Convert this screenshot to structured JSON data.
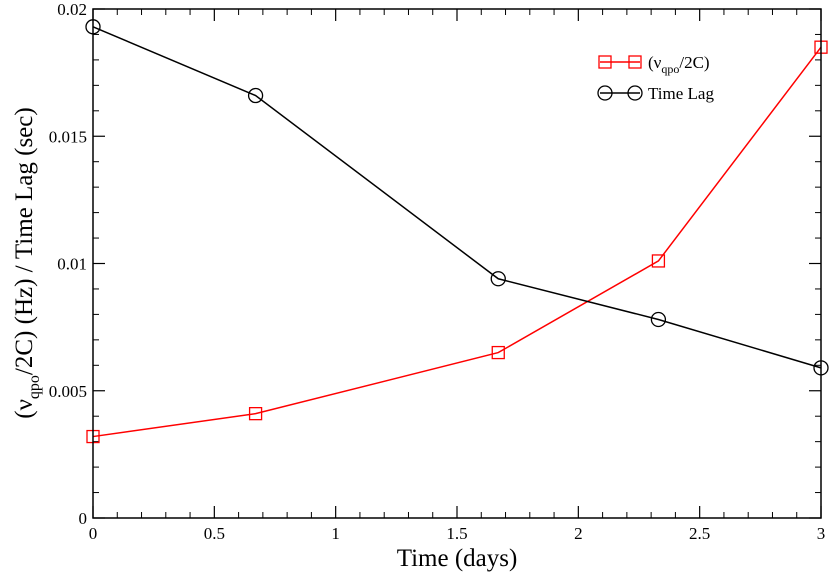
{
  "chart_data": {
    "type": "line",
    "title": "",
    "xlabel": "Time (days)",
    "ylabel": "(ν_qpo/2C) (Hz) / Time Lag (sec)",
    "ylabel_parts": {
      "prefix": "(ν",
      "subscript": "qpo",
      "suffix": "/2C) (Hz) / Time Lag (sec)"
    },
    "xlim": [
      0,
      3
    ],
    "ylim": [
      0,
      0.02
    ],
    "x_ticks": [
      0,
      0.5,
      1,
      1.5,
      2,
      2.5,
      3
    ],
    "x_tick_labels": [
      "0",
      "0.5",
      "1",
      "1.5",
      "2",
      "2.5",
      "3"
    ],
    "y_ticks": [
      0,
      0.005,
      0.01,
      0.015,
      0.02
    ],
    "y_tick_labels": [
      "0",
      "0.005",
      "0.01",
      "0.015",
      "0.02"
    ],
    "x_minor_step": 0.1,
    "y_minor_step": 0.001,
    "grid": false,
    "legend_position": "top-right",
    "series": [
      {
        "name": "(ν_qpo/2C)",
        "legend_parts": {
          "prefix": "(ν",
          "subscript": "qpo",
          "suffix": "/2C)"
        },
        "color": "#ff0000",
        "marker": "square",
        "x": [
          0,
          0.67,
          1.67,
          2.33,
          3.0
        ],
        "values": [
          0.0032,
          0.0041,
          0.0065,
          0.0101,
          0.0185
        ]
      },
      {
        "name": "Time Lag",
        "legend_parts": {
          "prefix": "Time Lag",
          "subscript": "",
          "suffix": ""
        },
        "color": "#000000",
        "marker": "circle",
        "x": [
          0,
          0.67,
          1.67,
          2.33,
          3.0
        ],
        "values": [
          0.0193,
          0.0166,
          0.0094,
          0.0078,
          0.0059
        ]
      }
    ]
  }
}
